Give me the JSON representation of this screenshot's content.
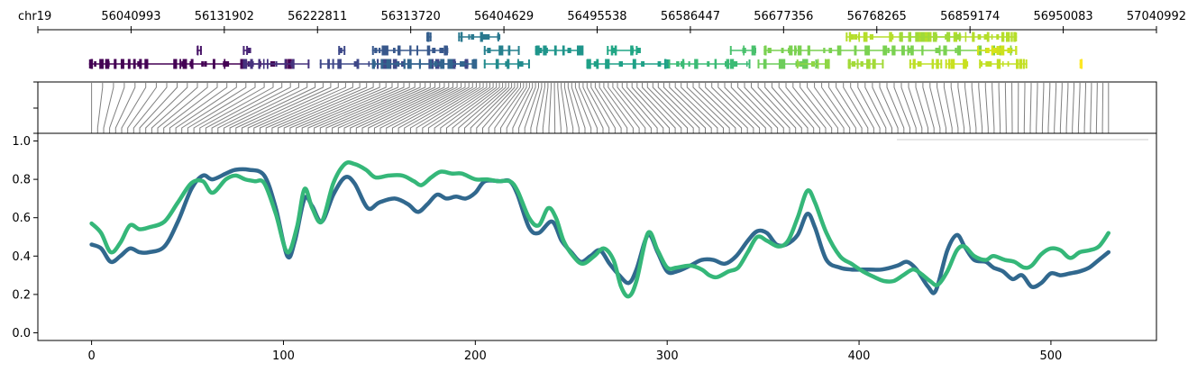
{
  "chart_data": [
    {
      "type": "genome-track",
      "chrom": "chr19",
      "x_range": [
        55950084,
        57040992
      ],
      "tick_labels": [
        "56040993",
        "56131902",
        "56222811",
        "56313720",
        "56404629",
        "56495538",
        "56586447",
        "56677356",
        "56768265",
        "56859174",
        "56950083",
        "57040992"
      ],
      "genes": [
        {
          "start": 56000000,
          "end": 56200000,
          "row": 2,
          "color": "#440154"
        },
        {
          "start": 56105000,
          "end": 56110000,
          "row": 1,
          "color": "#481467"
        },
        {
          "start": 56150000,
          "end": 56155000,
          "row": 1,
          "color": "#482475"
        },
        {
          "start": 56150000,
          "end": 56215000,
          "row": 2,
          "color": "#46337e"
        },
        {
          "start": 56225000,
          "end": 56368000,
          "row": 2,
          "color": "#3f4889"
        },
        {
          "start": 56243000,
          "end": 56250000,
          "row": 1,
          "color": "#3e4989"
        },
        {
          "start": 56276000,
          "end": 56350000,
          "row": 1,
          "color": "#38588c"
        },
        {
          "start": 56329000,
          "end": 56334000,
          "row": 0,
          "color": "#355f8d"
        },
        {
          "start": 56276000,
          "end": 56375000,
          "row": 2,
          "color": "#32658e"
        },
        {
          "start": 56360000,
          "end": 56400000,
          "row": 0,
          "color": "#2a788e"
        },
        {
          "start": 56385000,
          "end": 56420000,
          "row": 1,
          "color": "#26818e"
        },
        {
          "start": 56385000,
          "end": 56430000,
          "row": 2,
          "color": "#228b8d"
        },
        {
          "start": 56435000,
          "end": 56480000,
          "row": 1,
          "color": "#1f958b"
        },
        {
          "start": 56485000,
          "end": 56565000,
          "row": 2,
          "color": "#1fa187"
        },
        {
          "start": 56505000,
          "end": 56535000,
          "row": 1,
          "color": "#21a685"
        },
        {
          "start": 56565000,
          "end": 56645000,
          "row": 2,
          "color": "#3bbb75"
        },
        {
          "start": 56625000,
          "end": 56650000,
          "row": 1,
          "color": "#4ac16d"
        },
        {
          "start": 56652000,
          "end": 56710000,
          "row": 2,
          "color": "#6ccd5a"
        },
        {
          "start": 56658000,
          "end": 56905000,
          "row": 1,
          "color": "#7ad151"
        },
        {
          "start": 56690000,
          "end": 56720000,
          "row": 2,
          "color": "#8ed645"
        },
        {
          "start": 56740000,
          "end": 56775000,
          "row": 2,
          "color": "#a2da37"
        },
        {
          "start": 56738000,
          "end": 56905000,
          "row": 0,
          "color": "#b5de2b"
        },
        {
          "start": 56790000,
          "end": 56850000,
          "row": 0,
          "color": "#a0da39"
        },
        {
          "start": 56800000,
          "end": 56832000,
          "row": 2,
          "color": "#bddf26"
        },
        {
          "start": 56835000,
          "end": 56855000,
          "row": 2,
          "color": "#c8e020"
        },
        {
          "start": 56866000,
          "end": 56888000,
          "row": 1,
          "color": "#d8e219"
        },
        {
          "start": 56868000,
          "end": 56915000,
          "row": 2,
          "color": "#c2df23"
        },
        {
          "start": 56885000,
          "end": 56905000,
          "row": 1,
          "color": "#cde11d"
        },
        {
          "start": 56966000,
          "end": 56968000,
          "row": 2,
          "color": "#fde725"
        }
      ]
    },
    {
      "type": "line",
      "xlim": [
        -28,
        555
      ],
      "ylim": [
        -0.04,
        1.04
      ],
      "x_ticks": [
        0,
        100,
        200,
        300,
        400,
        500
      ],
      "y_ticks": [
        0.0,
        0.2,
        0.4,
        0.6,
        0.8,
        1.0
      ],
      "y_tick_labels": [
        "0.0",
        "0.2",
        "0.4",
        "0.6",
        "0.8",
        "1.0"
      ],
      "series": [
        {
          "color": "#31688e",
          "points": [
            [
              0,
              0.46
            ],
            [
              5,
              0.44
            ],
            [
              10,
              0.37
            ],
            [
              15,
              0.4
            ],
            [
              20,
              0.44
            ],
            [
              25,
              0.42
            ],
            [
              30,
              0.42
            ],
            [
              38,
              0.45
            ],
            [
              45,
              0.58
            ],
            [
              52,
              0.75
            ],
            [
              58,
              0.82
            ],
            [
              63,
              0.8
            ],
            [
              70,
              0.83
            ],
            [
              75,
              0.85
            ],
            [
              82,
              0.85
            ],
            [
              90,
              0.82
            ],
            [
              96,
              0.65
            ],
            [
              102,
              0.4
            ],
            [
              106,
              0.48
            ],
            [
              111,
              0.7
            ],
            [
              115,
              0.66
            ],
            [
              120,
              0.58
            ],
            [
              126,
              0.72
            ],
            [
              132,
              0.81
            ],
            [
              137,
              0.78
            ],
            [
              144,
              0.65
            ],
            [
              150,
              0.68
            ],
            [
              158,
              0.7
            ],
            [
              165,
              0.67
            ],
            [
              170,
              0.63
            ],
            [
              175,
              0.67
            ],
            [
              180,
              0.72
            ],
            [
              185,
              0.7
            ],
            [
              190,
              0.71
            ],
            [
              195,
              0.7
            ],
            [
              200,
              0.73
            ],
            [
              205,
              0.79
            ],
            [
              213,
              0.79
            ],
            [
              218,
              0.79
            ],
            [
              222,
              0.72
            ],
            [
              228,
              0.55
            ],
            [
              233,
              0.52
            ],
            [
              240,
              0.58
            ],
            [
              245,
              0.48
            ],
            [
              250,
              0.42
            ],
            [
              255,
              0.37
            ],
            [
              260,
              0.4
            ],
            [
              265,
              0.43
            ],
            [
              270,
              0.36
            ],
            [
              275,
              0.3
            ],
            [
              280,
              0.26
            ],
            [
              284,
              0.33
            ],
            [
              290,
              0.51
            ],
            [
              295,
              0.42
            ],
            [
              300,
              0.32
            ],
            [
              305,
              0.32
            ],
            [
              312,
              0.35
            ],
            [
              318,
              0.38
            ],
            [
              324,
              0.38
            ],
            [
              330,
              0.36
            ],
            [
              336,
              0.4
            ],
            [
              342,
              0.48
            ],
            [
              347,
              0.53
            ],
            [
              352,
              0.52
            ],
            [
              357,
              0.46
            ],
            [
              362,
              0.46
            ],
            [
              368,
              0.51
            ],
            [
              373,
              0.62
            ],
            [
              377,
              0.55
            ],
            [
              383,
              0.38
            ],
            [
              390,
              0.34
            ],
            [
              396,
              0.33
            ],
            [
              405,
              0.33
            ],
            [
              412,
              0.33
            ],
            [
              420,
              0.35
            ],
            [
              425,
              0.37
            ],
            [
              430,
              0.33
            ],
            [
              436,
              0.24
            ],
            [
              440,
              0.22
            ],
            [
              446,
              0.43
            ],
            [
              451,
              0.51
            ],
            [
              455,
              0.45
            ],
            [
              460,
              0.38
            ],
            [
              466,
              0.37
            ],
            [
              470,
              0.34
            ],
            [
              475,
              0.32
            ],
            [
              480,
              0.28
            ],
            [
              485,
              0.3
            ],
            [
              490,
              0.24
            ],
            [
              495,
              0.26
            ],
            [
              500,
              0.31
            ],
            [
              505,
              0.3
            ],
            [
              510,
              0.31
            ],
            [
              515,
              0.32
            ],
            [
              520,
              0.34
            ],
            [
              525,
              0.38
            ],
            [
              530,
              0.42
            ]
          ]
        },
        {
          "color": "#35b779",
          "points": [
            [
              0,
              0.57
            ],
            [
              5,
              0.52
            ],
            [
              10,
              0.42
            ],
            [
              15,
              0.47
            ],
            [
              20,
              0.56
            ],
            [
              25,
              0.54
            ],
            [
              30,
              0.55
            ],
            [
              38,
              0.58
            ],
            [
              45,
              0.68
            ],
            [
              52,
              0.78
            ],
            [
              58,
              0.79
            ],
            [
              63,
              0.73
            ],
            [
              70,
              0.8
            ],
            [
              75,
              0.82
            ],
            [
              80,
              0.8
            ],
            [
              85,
              0.79
            ],
            [
              90,
              0.78
            ],
            [
              96,
              0.62
            ],
            [
              102,
              0.42
            ],
            [
              107,
              0.55
            ],
            [
              111,
              0.75
            ],
            [
              115,
              0.65
            ],
            [
              120,
              0.58
            ],
            [
              126,
              0.78
            ],
            [
              132,
              0.88
            ],
            [
              137,
              0.88
            ],
            [
              143,
              0.85
            ],
            [
              148,
              0.81
            ],
            [
              155,
              0.82
            ],
            [
              162,
              0.82
            ],
            [
              168,
              0.79
            ],
            [
              172,
              0.77
            ],
            [
              177,
              0.81
            ],
            [
              182,
              0.84
            ],
            [
              188,
              0.83
            ],
            [
              193,
              0.83
            ],
            [
              200,
              0.8
            ],
            [
              206,
              0.8
            ],
            [
              212,
              0.79
            ],
            [
              218,
              0.79
            ],
            [
              222,
              0.74
            ],
            [
              228,
              0.6
            ],
            [
              233,
              0.56
            ],
            [
              238,
              0.65
            ],
            [
              242,
              0.6
            ],
            [
              246,
              0.48
            ],
            [
              251,
              0.4
            ],
            [
              256,
              0.36
            ],
            [
              262,
              0.4
            ],
            [
              267,
              0.44
            ],
            [
              272,
              0.38
            ],
            [
              276,
              0.24
            ],
            [
              280,
              0.19
            ],
            [
              284,
              0.27
            ],
            [
              290,
              0.52
            ],
            [
              295,
              0.43
            ],
            [
              300,
              0.34
            ],
            [
              305,
              0.34
            ],
            [
              312,
              0.35
            ],
            [
              318,
              0.33
            ],
            [
              322,
              0.3
            ],
            [
              326,
              0.29
            ],
            [
              332,
              0.32
            ],
            [
              337,
              0.34
            ],
            [
              342,
              0.42
            ],
            [
              347,
              0.5
            ],
            [
              352,
              0.48
            ],
            [
              358,
              0.45
            ],
            [
              363,
              0.48
            ],
            [
              368,
              0.6
            ],
            [
              373,
              0.74
            ],
            [
              377,
              0.68
            ],
            [
              383,
              0.52
            ],
            [
              390,
              0.4
            ],
            [
              396,
              0.36
            ],
            [
              402,
              0.32
            ],
            [
              408,
              0.29
            ],
            [
              413,
              0.27
            ],
            [
              418,
              0.27
            ],
            [
              423,
              0.3
            ],
            [
              428,
              0.33
            ],
            [
              432,
              0.31
            ],
            [
              437,
              0.27
            ],
            [
              441,
              0.25
            ],
            [
              446,
              0.32
            ],
            [
              451,
              0.43
            ],
            [
              455,
              0.45
            ],
            [
              460,
              0.4
            ],
            [
              466,
              0.38
            ],
            [
              470,
              0.4
            ],
            [
              476,
              0.38
            ],
            [
              481,
              0.37
            ],
            [
              486,
              0.34
            ],
            [
              490,
              0.35
            ],
            [
              495,
              0.41
            ],
            [
              500,
              0.44
            ],
            [
              505,
              0.43
            ],
            [
              510,
              0.39
            ],
            [
              515,
              0.42
            ],
            [
              520,
              0.43
            ],
            [
              525,
              0.45
            ],
            [
              530,
              0.52
            ]
          ]
        }
      ]
    }
  ]
}
